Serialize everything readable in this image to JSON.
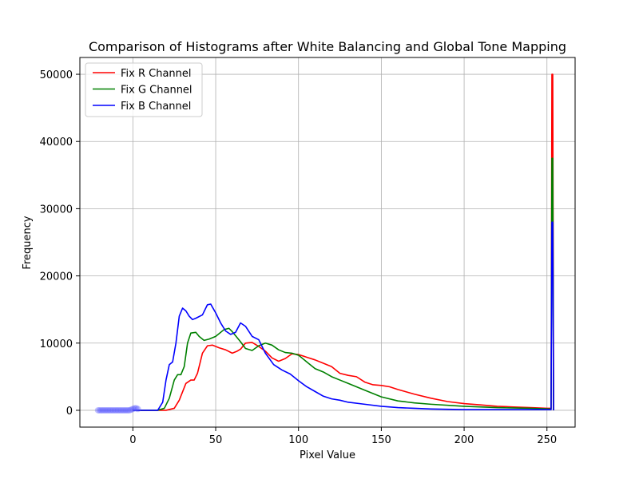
{
  "chart_data": {
    "type": "line",
    "title": "Comparison of Histograms after White Balancing and Global Tone Mapping",
    "xlabel": "Pixel Value",
    "ylabel": "Frequency",
    "xlim": [
      -32,
      267
    ],
    "ylim": [
      -2500,
      52500
    ],
    "xticks": [
      0,
      50,
      100,
      150,
      200,
      250
    ],
    "yticks": [
      0,
      10000,
      20000,
      30000,
      40000,
      50000
    ],
    "grid": true,
    "legend_position": "top-left",
    "scatter_markers": {
      "color": "#5555ff",
      "x": [
        -21,
        -20,
        -19,
        -18,
        -17,
        -16,
        -15,
        -14,
        -13,
        -12,
        -11,
        -10,
        -9,
        -8,
        -7,
        -6,
        -5,
        -4,
        -3,
        -2,
        -1,
        0,
        1,
        2,
        3
      ],
      "y": [
        0,
        0,
        0,
        0,
        0,
        0,
        0,
        0,
        0,
        0,
        0,
        0,
        0,
        0,
        0,
        0,
        0,
        0,
        0,
        0,
        100,
        200,
        300,
        300,
        200
      ]
    },
    "series": [
      {
        "name": "Fix R Channel",
        "color": "#ff0000",
        "x": [
          0,
          20,
          25,
          28,
          32,
          35,
          37,
          39,
          42,
          45,
          48,
          52,
          56,
          60,
          63,
          65,
          68,
          72,
          76,
          80,
          84,
          88,
          92,
          96,
          100,
          105,
          110,
          115,
          120,
          125,
          130,
          135,
          140,
          145,
          150,
          155,
          160,
          170,
          180,
          190,
          200,
          210,
          220,
          230,
          240,
          250,
          252.5,
          253,
          253.5,
          254
        ],
        "y": [
          0,
          0,
          300,
          1500,
          4000,
          4500,
          4500,
          5500,
          8500,
          9600,
          9700,
          9300,
          9000,
          8500,
          8800,
          9100,
          10000,
          10100,
          9500,
          8800,
          7800,
          7300,
          7700,
          8400,
          8300,
          7900,
          7500,
          7000,
          6500,
          5500,
          5200,
          5000,
          4200,
          3800,
          3700,
          3500,
          3100,
          2400,
          1800,
          1300,
          1000,
          800,
          600,
          500,
          400,
          300,
          300,
          50000,
          50000,
          0
        ]
      },
      {
        "name": "Fix G Channel",
        "color": "#008000",
        "x": [
          0,
          15,
          19,
          22,
          25,
          27,
          29,
          31,
          33,
          35,
          38,
          40,
          43,
          46,
          50,
          55,
          58,
          60,
          62,
          65,
          68,
          72,
          76,
          80,
          84,
          88,
          92,
          96,
          100,
          105,
          110,
          115,
          120,
          125,
          130,
          140,
          150,
          160,
          170,
          180,
          200,
          220,
          240,
          252.5,
          253,
          253.5,
          254
        ],
        "y": [
          0,
          0,
          300,
          1800,
          4500,
          5300,
          5300,
          6500,
          10000,
          11500,
          11600,
          11000,
          10400,
          10600,
          11000,
          12000,
          12200,
          11700,
          11100,
          10200,
          9200,
          8900,
          9600,
          10000,
          9700,
          9000,
          8600,
          8500,
          8200,
          7200,
          6200,
          5700,
          5000,
          4500,
          4000,
          3000,
          2000,
          1400,
          1100,
          900,
          600,
          400,
          300,
          200,
          37500,
          37500,
          0
        ]
      },
      {
        "name": "Fix B Channel",
        "color": "#0000ff",
        "x": [
          0,
          15,
          18,
          20,
          22,
          24,
          26,
          28,
          30,
          32,
          34,
          36,
          38,
          42,
          45,
          47,
          50,
          53,
          56,
          59,
          62,
          65,
          68,
          72,
          76,
          80,
          85,
          90,
          95,
          100,
          105,
          110,
          115,
          120,
          125,
          130,
          140,
          150,
          160,
          170,
          180,
          200,
          220,
          240,
          252.5,
          253,
          253.5,
          254
        ],
        "y": [
          0,
          0,
          1200,
          4500,
          6800,
          7200,
          10000,
          14000,
          15200,
          14800,
          14000,
          13500,
          13700,
          14200,
          15700,
          15800,
          14500,
          13000,
          11800,
          11300,
          11600,
          13000,
          12500,
          11000,
          10500,
          8500,
          6800,
          6000,
          5400,
          4400,
          3500,
          2800,
          2100,
          1700,
          1500,
          1200,
          900,
          600,
          400,
          300,
          200,
          100,
          100,
          100,
          100,
          28000,
          28000,
          0
        ]
      }
    ]
  }
}
